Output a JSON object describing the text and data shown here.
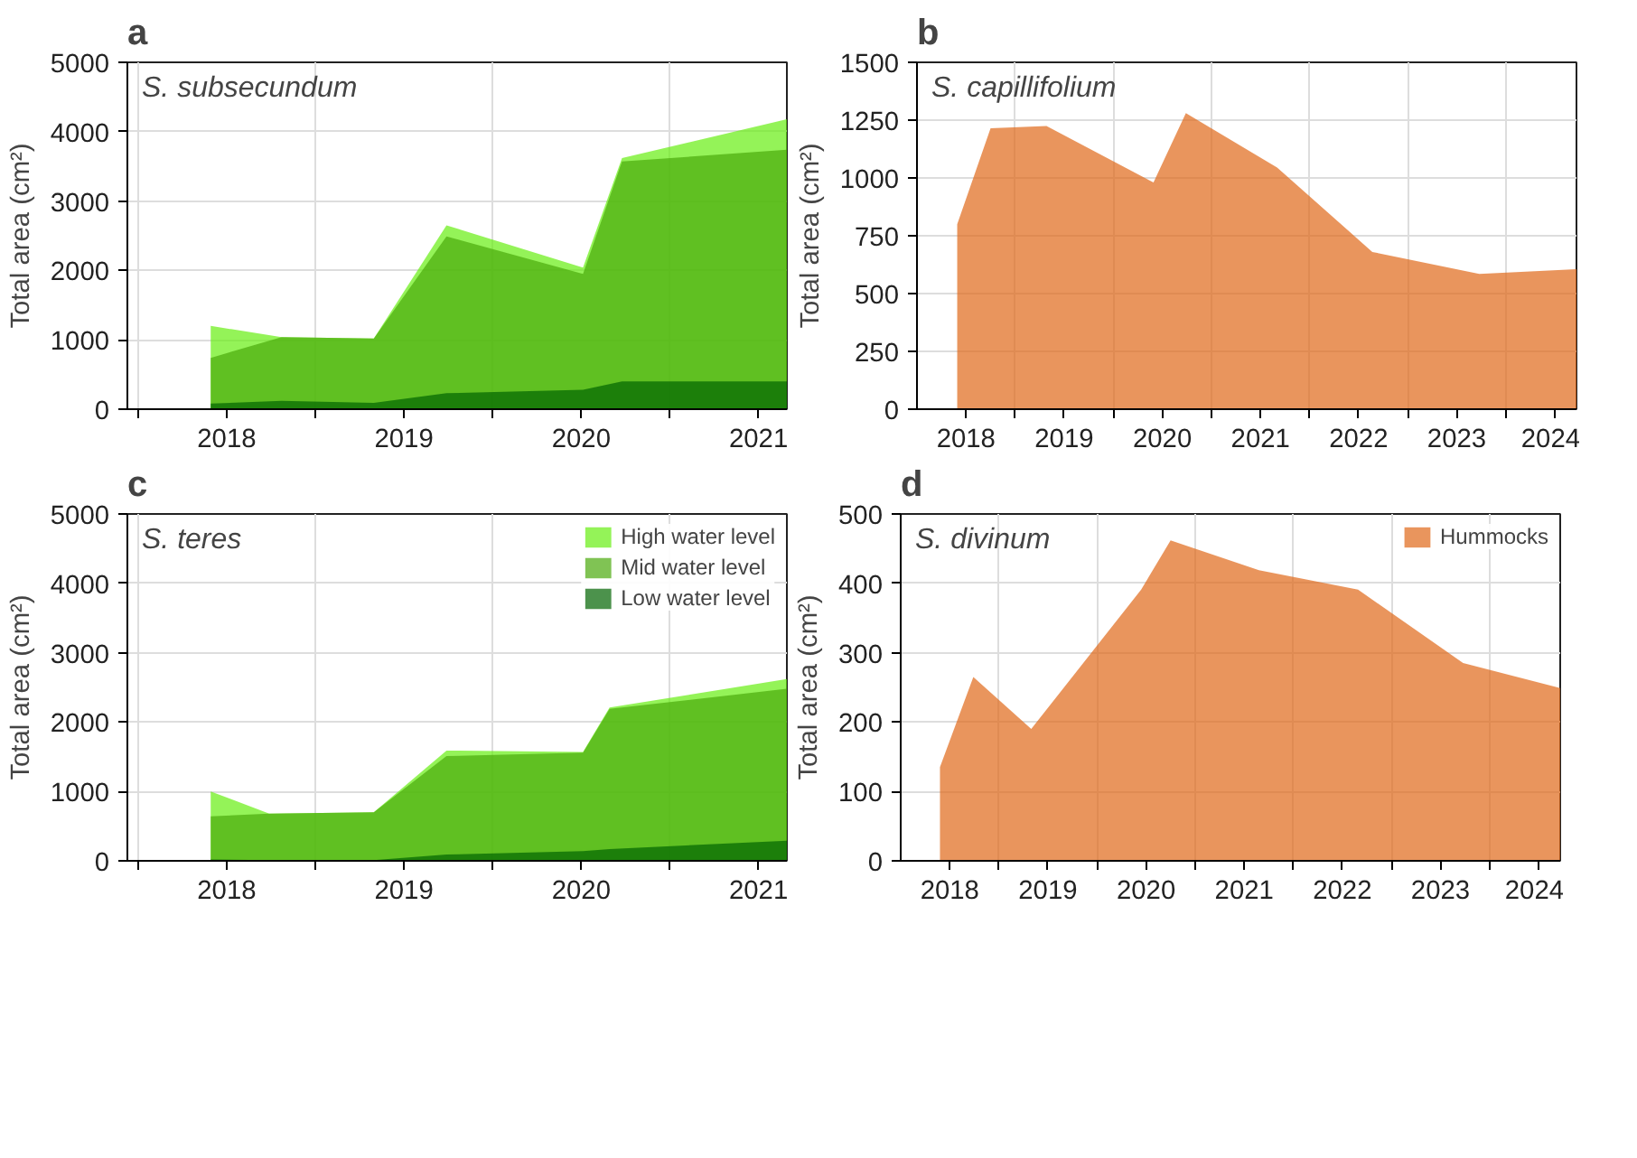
{
  "chart_data": [
    {
      "type": "area",
      "title": "a",
      "subtitle": "S. subsecundum",
      "ylabel": "Total area (cm²)",
      "grid": true,
      "xlim": [
        2017.44,
        2021.16
      ],
      "ylim": [
        0,
        5000
      ],
      "yticks": [
        0,
        1000,
        2000,
        3000,
        4000,
        5000
      ],
      "xticks": [
        {
          "value": 2017.5,
          "label": null
        },
        2018,
        {
          "value": 2018.5,
          "label": null
        },
        2019,
        {
          "value": 2019.5,
          "label": null
        },
        2020,
        {
          "value": 2020.5,
          "label": null
        },
        2021
      ],
      "x": [
        2017.91,
        2018.31,
        2018.83,
        2019.24,
        2020.01,
        2020.23,
        2021.16
      ],
      "series": [
        {
          "color": "#66ee11",
          "values": [
            1200,
            1040,
            1020,
            2650,
            2040,
            3620,
            4180
          ]
        },
        {
          "color": "#4aa90b",
          "values": [
            740,
            1040,
            1020,
            2490,
            1950,
            3570,
            3740
          ]
        },
        {
          "color": "#006400",
          "values": [
            80,
            120,
            90,
            230,
            280,
            400,
            400
          ]
        }
      ]
    },
    {
      "type": "area",
      "title": "b",
      "subtitle": "S. capillifolium",
      "ylabel": "Total area (cm²)",
      "grid": true,
      "xlim": [
        2017.5,
        2024.22
      ],
      "ylim": [
        0,
        1500
      ],
      "yticks": [
        0,
        250,
        500,
        750,
        1000,
        1250,
        1500
      ],
      "xticks": [
        2018,
        {
          "value": 2018.5,
          "label": null
        },
        2019,
        {
          "value": 2019.5,
          "label": null
        },
        2020,
        {
          "value": 2020.5,
          "label": null
        },
        2021,
        {
          "value": 2021.5,
          "label": null
        },
        2022,
        {
          "value": 2022.5,
          "label": null
        },
        2023,
        {
          "value": 2023.5,
          "label": null
        },
        2024
      ],
      "x": [
        2017.91,
        2018.25,
        2018.82,
        2019.91,
        2020.24,
        2021.17,
        2022.14,
        2023.23,
        2024.22
      ],
      "series": [
        {
          "color": "#e06818",
          "values": [
            800,
            1215,
            1225,
            980,
            1280,
            1045,
            680,
            585,
            605
          ]
        }
      ]
    },
    {
      "type": "area",
      "title": "c",
      "subtitle": "S. teres",
      "ylabel": "Total area (cm²)",
      "grid": true,
      "legend": "top right",
      "xlim": [
        2017.44,
        2021.16
      ],
      "ylim": [
        0,
        5000
      ],
      "yticks": [
        0,
        1000,
        2000,
        3000,
        4000,
        5000
      ],
      "xticks": [
        {
          "value": 2017.5,
          "label": null
        },
        2018,
        {
          "value": 2018.5,
          "label": null
        },
        2019,
        {
          "value": 2019.5,
          "label": null
        },
        2020,
        {
          "value": 2020.5,
          "label": null
        },
        2021
      ],
      "x": [
        2017.91,
        2018.24,
        2018.83,
        2019.24,
        2020.01,
        2020.16,
        2021.16
      ],
      "series": [
        {
          "name": "High water level",
          "color": "#66ee11",
          "values": [
            1000,
            680,
            700,
            1590,
            1570,
            2210,
            2620
          ]
        },
        {
          "name": "Mid water level",
          "color": "#4aa90b",
          "values": [
            640,
            680,
            700,
            1510,
            1560,
            2190,
            2480
          ]
        },
        {
          "name": "Low water level",
          "color": "#006400",
          "values": [
            20,
            10,
            10,
            90,
            140,
            170,
            290
          ]
        }
      ]
    },
    {
      "type": "area",
      "title": "d",
      "subtitle": "S. divinum",
      "ylabel": "Total area (cm²)",
      "grid": true,
      "legend": "top right",
      "xlim": [
        2017.5,
        2024.22
      ],
      "ylim": [
        0,
        500
      ],
      "yticks": [
        0,
        100,
        200,
        300,
        400,
        500
      ],
      "xticks": [
        2018,
        {
          "value": 2018.5,
          "label": null
        },
        2019,
        {
          "value": 2019.5,
          "label": null
        },
        2020,
        {
          "value": 2020.5,
          "label": null
        },
        2021,
        {
          "value": 2021.5,
          "label": null
        },
        2022,
        {
          "value": 2022.5,
          "label": null
        },
        2023,
        {
          "value": 2023.5,
          "label": null
        },
        2024
      ],
      "x": [
        2017.9,
        2018.24,
        2018.83,
        2019.95,
        2020.25,
        2021.15,
        2022.16,
        2023.23,
        2024.22
      ],
      "series": [
        {
          "name": "Hummocks",
          "color": "#e06818",
          "values": [
            135,
            265,
            190,
            391,
            462,
            419,
            391,
            285,
            249
          ]
        }
      ]
    }
  ]
}
